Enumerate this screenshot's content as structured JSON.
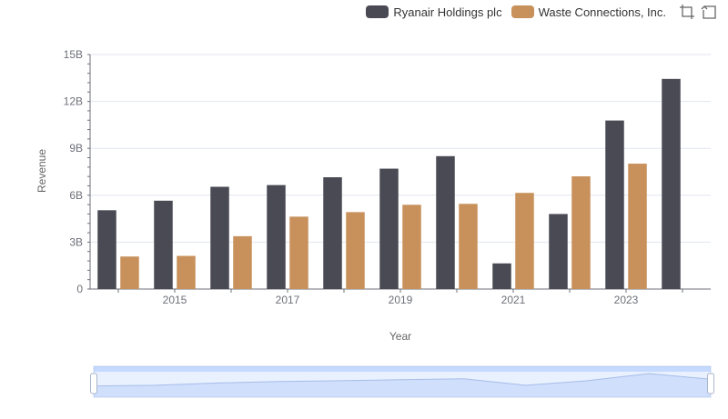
{
  "legend": {
    "items": [
      {
        "label": "Ryanair Holdings plc",
        "color": "#4a4a55"
      },
      {
        "label": "Waste Connections, Inc.",
        "color": "#c8915c"
      }
    ]
  },
  "toolbox": {
    "icons": [
      "zoom-icon",
      "restore-icon"
    ]
  },
  "chart_data": {
    "type": "bar",
    "xlabel": "Year",
    "ylabel": "Revenue",
    "ylim": [
      0,
      15000000000
    ],
    "yticks": [
      "0",
      "3B",
      "6B",
      "9B",
      "12B",
      "15B"
    ],
    "categories": [
      "2014",
      "2015",
      "2016",
      "2017",
      "2018",
      "2019",
      "2020",
      "2021",
      "2022",
      "2023",
      "2024"
    ],
    "xtick_labels_shown": [
      "2015",
      "2017",
      "2019",
      "2021",
      "2023"
    ],
    "series": [
      {
        "name": "Ryanair Holdings plc",
        "color": "#4a4a55",
        "values": [
          5040000000,
          5650000000,
          6540000000,
          6650000000,
          7150000000,
          7700000000,
          8500000000,
          1640000000,
          4800000000,
          10780000000,
          13440000000
        ]
      },
      {
        "name": "Waste Connections, Inc.",
        "color": "#c8915c",
        "values": [
          2080000000,
          2120000000,
          3380000000,
          4630000000,
          4920000000,
          5390000000,
          5450000000,
          6150000000,
          7210000000,
          8020000000,
          null
        ]
      }
    ],
    "grid": true,
    "legend_position": "top-right",
    "data_zoom": {
      "start_percent": 0,
      "end_percent": 100
    }
  }
}
